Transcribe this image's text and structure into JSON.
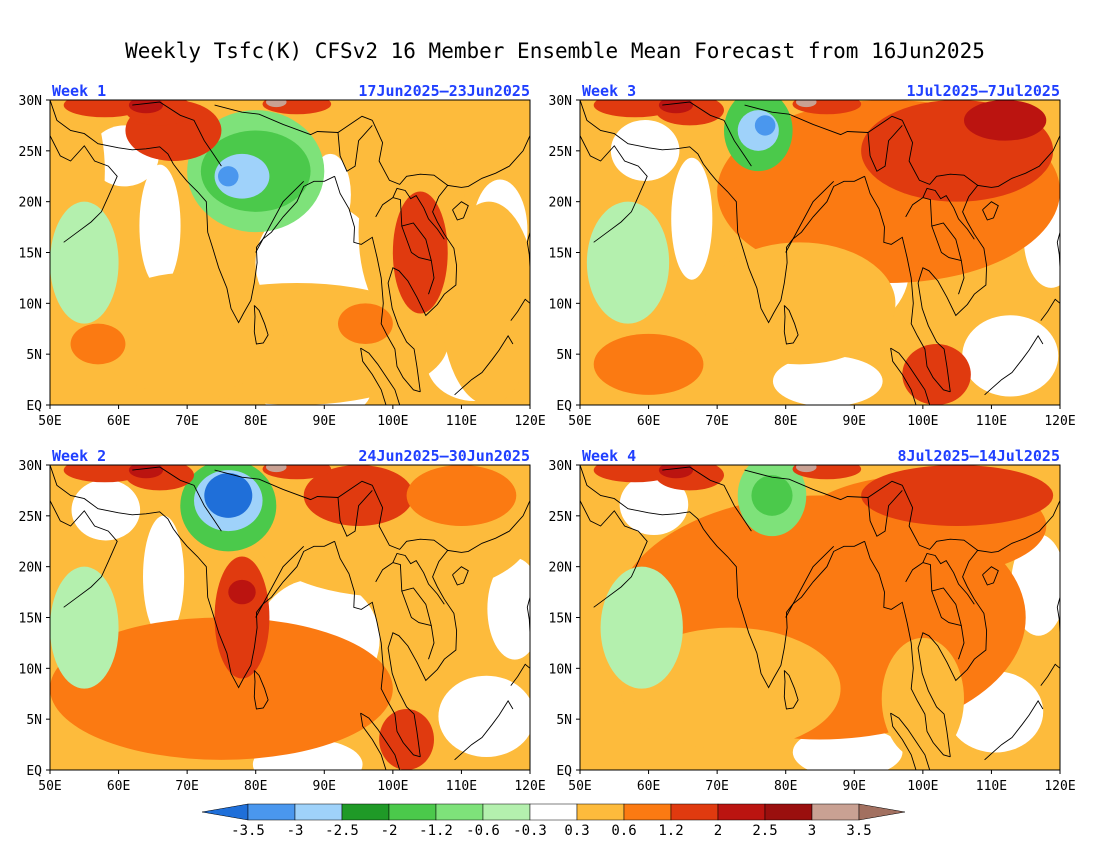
{
  "title": "Weekly Tsfc(K) CFSv2 16 Member Ensemble Mean Forecast from 16Jun2025",
  "lat_ticks": [
    "30N",
    "25N",
    "20N",
    "15N",
    "10N",
    "5N",
    "EQ"
  ],
  "lon_ticks": [
    "50E",
    "60E",
    "70E",
    "80E",
    "90E",
    "100E",
    "110E",
    "120E"
  ],
  "colors": {
    "neg_3_5": "#1f6fd9",
    "neg_3": "#4a97ee",
    "neg_2_5": "#9fd2fa",
    "neg_2": "#1f9a27",
    "neg_1_2": "#4bc94b",
    "neg_0_6": "#7ee27a",
    "neg_0_3": "#b4f0ae",
    "neutral": "#ffffff",
    "pos_0_3": "#fdbb3c",
    "pos_0_6": "#fb7a12",
    "pos_1_2": "#e03a0f",
    "pos_2": "#bb1410",
    "pos_2_5": "#9a0f0e",
    "pos_3": "#c9a193",
    "pos_3_5": "#a27060"
  },
  "panels": [
    {
      "week": "Week 1",
      "dates": "17Jun2025–23Jun2025",
      "blobs": [
        {
          "lon": 52,
          "lat": 23,
          "rx": 6,
          "ry": 9,
          "level": "pos_0_3"
        },
        {
          "lon": 86,
          "lat": 6,
          "rx": 22,
          "ry": 6,
          "level": "pos_0_3"
        },
        {
          "lon": 70,
          "lat": 7,
          "rx": 14,
          "ry": 6,
          "level": "pos_0_3"
        },
        {
          "lon": 103,
          "lat": 17,
          "rx": 8,
          "ry": 10,
          "level": "pos_0_3"
        },
        {
          "lon": 114,
          "lat": 10,
          "rx": 7,
          "ry": 10,
          "level": "pos_0_3"
        },
        {
          "lon": 80,
          "lat": 23,
          "rx": 10,
          "ry": 6,
          "level": "neg_0_6"
        },
        {
          "lon": 80,
          "lat": 23,
          "rx": 8,
          "ry": 4,
          "level": "neg_1_2"
        },
        {
          "lon": 78,
          "lat": 22.5,
          "rx": 4,
          "ry": 2.2,
          "level": "neg_2_5"
        },
        {
          "lon": 76,
          "lat": 22.5,
          "rx": 1.5,
          "ry": 1,
          "level": "neg_3"
        },
        {
          "lon": 55,
          "lat": 14,
          "rx": 5,
          "ry": 6,
          "level": "neg_0_3"
        },
        {
          "lon": 104,
          "lat": 15,
          "rx": 4,
          "ry": 6,
          "level": "pos_1_2"
        },
        {
          "lon": 68,
          "lat": 27,
          "rx": 7,
          "ry": 3,
          "level": "pos_1_2"
        },
        {
          "lon": 96,
          "lat": 8,
          "rx": 4,
          "ry": 2,
          "level": "pos_0_6"
        },
        {
          "lon": 57,
          "lat": 6,
          "rx": 4,
          "ry": 2,
          "level": "pos_0_6"
        }
      ]
    },
    {
      "week": "Week 3",
      "dates": "1Jul2025–7Jul2025",
      "blobs": [
        {
          "lon": 95,
          "lat": 21,
          "rx": 25,
          "ry": 9,
          "level": "pos_0_6"
        },
        {
          "lon": 82,
          "lat": 10,
          "rx": 14,
          "ry": 6,
          "level": "pos_0_3"
        },
        {
          "lon": 105,
          "lat": 25,
          "rx": 14,
          "ry": 5,
          "level": "pos_1_2"
        },
        {
          "lon": 112,
          "lat": 28,
          "rx": 6,
          "ry": 2,
          "level": "pos_2"
        },
        {
          "lon": 76,
          "lat": 27,
          "rx": 5,
          "ry": 4,
          "level": "neg_1_2"
        },
        {
          "lon": 76,
          "lat": 27,
          "rx": 3,
          "ry": 2,
          "level": "neg_2_5"
        },
        {
          "lon": 77,
          "lat": 27.5,
          "rx": 1.5,
          "ry": 1,
          "level": "neg_3"
        },
        {
          "lon": 57,
          "lat": 14,
          "rx": 6,
          "ry": 6,
          "level": "neg_0_3"
        },
        {
          "lon": 102,
          "lat": 3,
          "rx": 5,
          "ry": 3,
          "level": "pos_1_2"
        },
        {
          "lon": 60,
          "lat": 4,
          "rx": 8,
          "ry": 3,
          "level": "pos_0_6"
        }
      ]
    },
    {
      "week": "Week 2",
      "dates": "24Jun2025–30Jun2025",
      "blobs": [
        {
          "lon": 75,
          "lat": 8,
          "rx": 25,
          "ry": 7,
          "level": "pos_0_6"
        },
        {
          "lon": 100,
          "lat": 23,
          "rx": 20,
          "ry": 6,
          "level": "pos_0_3"
        },
        {
          "lon": 78,
          "lat": 15,
          "rx": 4,
          "ry": 6,
          "level": "pos_1_2"
        },
        {
          "lon": 78,
          "lat": 17.5,
          "rx": 2,
          "ry": 1.2,
          "level": "pos_2"
        },
        {
          "lon": 76,
          "lat": 26,
          "rx": 7,
          "ry": 4.5,
          "level": "neg_1_2"
        },
        {
          "lon": 76,
          "lat": 26.5,
          "rx": 5,
          "ry": 3,
          "level": "neg_2_5"
        },
        {
          "lon": 76,
          "lat": 27,
          "rx": 3.5,
          "ry": 2.2,
          "level": "neg_3_5"
        },
        {
          "lon": 95,
          "lat": 27,
          "rx": 8,
          "ry": 3,
          "level": "pos_1_2"
        },
        {
          "lon": 110,
          "lat": 27,
          "rx": 8,
          "ry": 3,
          "level": "pos_0_6"
        },
        {
          "lon": 55,
          "lat": 14,
          "rx": 5,
          "ry": 6,
          "level": "neg_0_3"
        },
        {
          "lon": 102,
          "lat": 3,
          "rx": 4,
          "ry": 3,
          "level": "pos_1_2"
        }
      ]
    },
    {
      "week": "Week 4",
      "dates": "8Jul2025–14Jul2025",
      "blobs": [
        {
          "lon": 85,
          "lat": 15,
          "rx": 30,
          "ry": 12,
          "level": "pos_0_6"
        },
        {
          "lon": 72,
          "lat": 8,
          "rx": 16,
          "ry": 6,
          "level": "pos_0_3"
        },
        {
          "lon": 100,
          "lat": 24,
          "rx": 18,
          "ry": 5,
          "level": "pos_0_6"
        },
        {
          "lon": 105,
          "lat": 27,
          "rx": 14,
          "ry": 3,
          "level": "pos_1_2"
        },
        {
          "lon": 78,
          "lat": 27,
          "rx": 5,
          "ry": 4,
          "level": "neg_0_6"
        },
        {
          "lon": 78,
          "lat": 27,
          "rx": 3,
          "ry": 2,
          "level": "neg_1_2"
        },
        {
          "lon": 59,
          "lat": 14,
          "rx": 6,
          "ry": 6,
          "level": "neg_0_3"
        },
        {
          "lon": 100,
          "lat": 7,
          "rx": 6,
          "ry": 6,
          "level": "pos_0_3"
        }
      ]
    }
  ],
  "colorbar": {
    "labels": [
      "-3.5",
      "-3",
      "-2.5",
      "-2",
      "-1.2",
      "-0.6",
      "-0.3",
      "0.3",
      "0.6",
      "1.2",
      "2",
      "2.5",
      "3",
      "3.5"
    ],
    "swatches": [
      "neg_3",
      "neg_2_5",
      "neg_2",
      "neg_1_2",
      "neg_0_6",
      "neg_0_3",
      "neutral",
      "pos_0_3",
      "pos_0_6",
      "pos_1_2",
      "pos_2",
      "pos_2_5",
      "pos_3"
    ],
    "low_end": "neg_3_5",
    "high_end": "pos_3_5"
  }
}
